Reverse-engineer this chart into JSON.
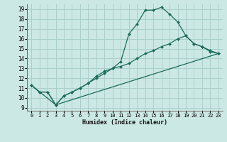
{
  "xlabel": "Humidex (Indice chaleur)",
  "bg_color": "#cce8e4",
  "grid_color": "#aacfcb",
  "line_color": "#1a6b5a",
  "xlim": [
    -0.5,
    23.5
  ],
  "ylim": [
    8.7,
    19.5
  ],
  "xticks": [
    0,
    1,
    2,
    3,
    4,
    5,
    6,
    7,
    8,
    9,
    10,
    11,
    12,
    13,
    14,
    15,
    16,
    17,
    18,
    19,
    20,
    21,
    22,
    23
  ],
  "yticks": [
    9,
    10,
    11,
    12,
    13,
    14,
    15,
    16,
    17,
    18,
    19
  ],
  "line2_x": [
    0,
    1,
    2,
    3,
    4,
    5,
    6,
    7,
    8,
    9,
    10,
    11,
    12,
    13,
    14,
    15,
    16,
    17,
    18,
    19,
    20,
    21,
    22,
    23
  ],
  "line2_y": [
    11.3,
    10.6,
    10.6,
    9.3,
    10.2,
    10.6,
    11.0,
    11.5,
    12.2,
    12.7,
    13.0,
    13.7,
    16.5,
    17.5,
    18.9,
    18.9,
    19.2,
    18.5,
    17.7,
    16.3,
    15.5,
    15.2,
    14.7,
    14.5
  ],
  "line1_x": [
    0,
    1,
    2,
    3,
    4,
    5,
    6,
    7,
    8,
    9,
    10,
    11,
    12,
    13,
    14,
    15,
    16,
    17,
    18,
    19,
    20,
    21,
    22,
    23
  ],
  "line1_y": [
    11.3,
    10.6,
    10.6,
    9.3,
    10.2,
    10.6,
    11.0,
    11.5,
    12.0,
    12.5,
    13.0,
    13.2,
    13.5,
    14.0,
    14.5,
    14.8,
    15.2,
    15.5,
    16.0,
    16.3,
    15.5,
    15.2,
    14.8,
    14.5
  ],
  "line3_x": [
    0,
    3,
    23
  ],
  "line3_y": [
    11.3,
    9.3,
    14.5
  ]
}
